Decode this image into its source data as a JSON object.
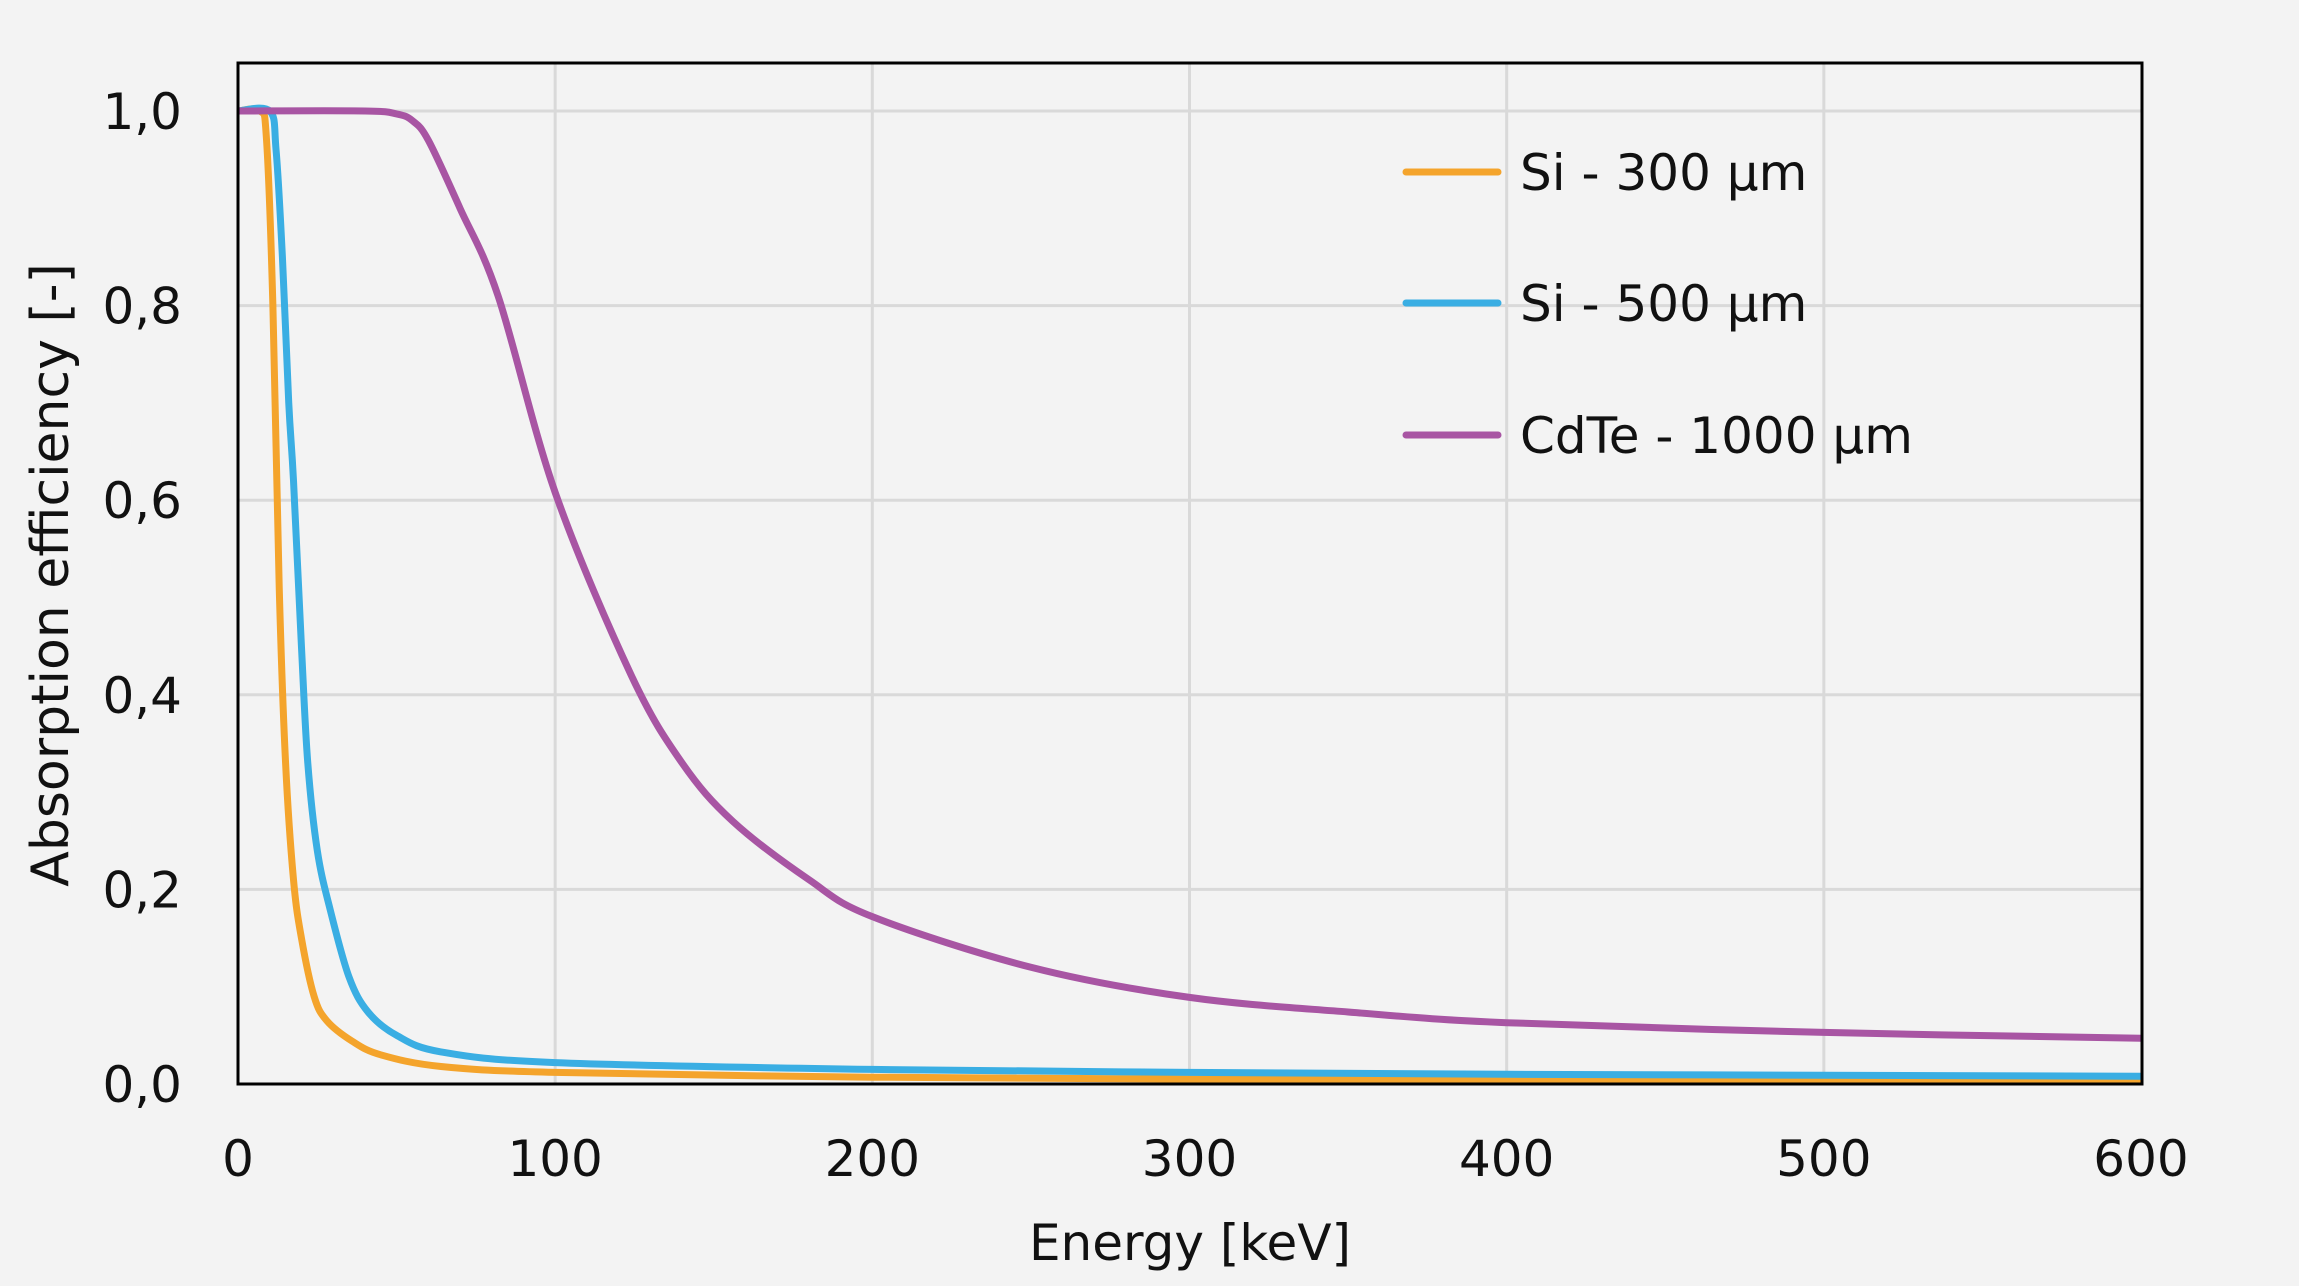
{
  "chart_data": {
    "type": "line",
    "title": "",
    "xlabel": "Energy [keV]",
    "ylabel": "Absorption efficiency [-]",
    "xlim": [
      0,
      600
    ],
    "ylim": [
      0,
      1.05
    ],
    "xticks": [
      0,
      100,
      200,
      300,
      400,
      500,
      600
    ],
    "xtick_labels": [
      "0",
      "100",
      "200",
      "300",
      "400",
      "500",
      "600"
    ],
    "yticks": [
      0,
      0.2,
      0.4,
      0.6,
      0.8,
      1.0
    ],
    "ytick_labels": [
      "0,0",
      "0,2",
      "0,4",
      "0,6",
      "0,8",
      "1,0"
    ],
    "grid": true,
    "legend_position": "top-right",
    "background": "#f3f3f3",
    "series": [
      {
        "name": "Si - 300 µm",
        "color": "#f4a42c",
        "x": [
          0,
          7,
          9,
          11,
          13,
          15,
          17.5,
          20,
          24,
          28,
          36,
          45,
          64,
          100,
          200,
          300,
          400,
          500,
          600
        ],
        "y": [
          1.0,
          1.0,
          0.97,
          0.8,
          0.51,
          0.33,
          0.21,
          0.15,
          0.09,
          0.065,
          0.044,
          0.03,
          0.018,
          0.012,
          0.007,
          0.005,
          0.004,
          0.0035,
          0.003
        ]
      },
      {
        "name": "Si - 500 µm",
        "color": "#3aaee3",
        "x": [
          0,
          10,
          12,
          14,
          16,
          17.5,
          20,
          22,
          25,
          29,
          35,
          41,
          50,
          64,
          100,
          200,
          300,
          400,
          500,
          600
        ],
        "y": [
          1.0,
          1.0,
          0.96,
          0.85,
          0.7,
          0.62,
          0.45,
          0.33,
          0.24,
          0.18,
          0.11,
          0.074,
          0.05,
          0.033,
          0.022,
          0.015,
          0.012,
          0.01,
          0.009,
          0.008
        ]
      },
      {
        "name": "CdTe - 1000 µm",
        "color": "#a855a3",
        "x": [
          0,
          40,
          50,
          55,
          60,
          70,
          82,
          100,
          124,
          140,
          156,
          180,
          200,
          250,
          300,
          350,
          400,
          500,
          600
        ],
        "y": [
          1.0,
          1.0,
          0.997,
          0.99,
          0.97,
          0.9,
          0.81,
          0.608,
          0.42,
          0.33,
          0.27,
          0.21,
          0.172,
          0.12,
          0.089,
          0.074,
          0.063,
          0.053,
          0.047
        ]
      }
    ]
  }
}
